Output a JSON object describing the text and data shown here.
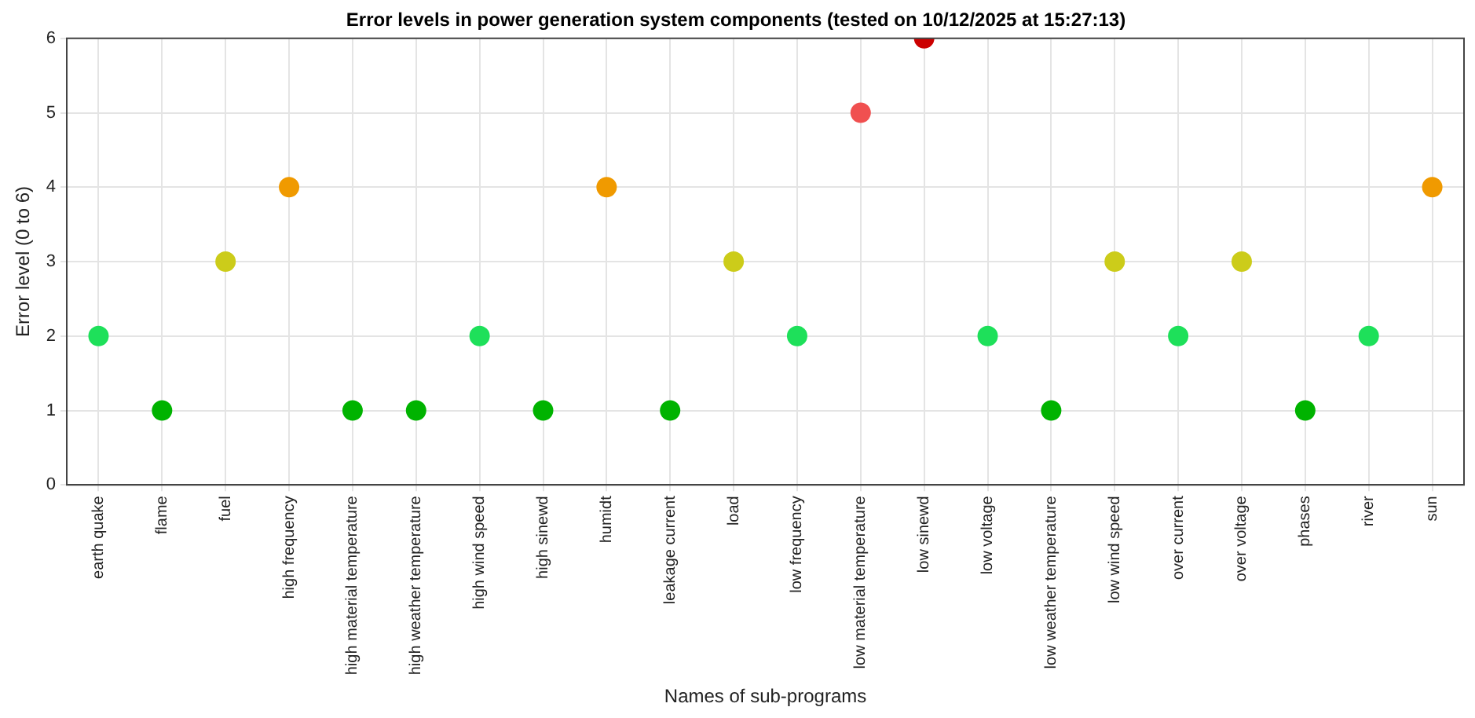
{
  "chart_data": {
    "type": "scatter",
    "title": "Error levels in power generation system components (tested on 10/12/2025 at 15:27:13)",
    "xlabel": "Names of sub-programs",
    "ylabel": "Error level (0 to 6)",
    "categories": [
      "earth quake",
      "flame",
      "fuel",
      "high frequency",
      "high material temperature",
      "high weather temperature",
      "high wind speed",
      "high sinewd",
      "humidt",
      "leakage current",
      "load",
      "low frequency",
      "low material temperature",
      "low sinewd",
      "low voltage",
      "low weather temperature",
      "low wind speed",
      "over current",
      "over voltage",
      "phases",
      "river",
      "sun"
    ],
    "values": [
      2,
      1,
      3,
      4,
      1,
      1,
      2,
      1,
      4,
      1,
      3,
      2,
      5,
      6,
      2,
      1,
      3,
      2,
      3,
      1,
      2,
      4
    ],
    "colors": [
      "#1ee05a",
      "#00b300",
      "#cccc1a",
      "#f09a00",
      "#00b300",
      "#00b300",
      "#1ee05a",
      "#00b300",
      "#f09a00",
      "#00b300",
      "#cccc1a",
      "#1ee05a",
      "#f05050",
      "#cc0000",
      "#1ee05a",
      "#00b300",
      "#cccc1a",
      "#1ee05a",
      "#cccc1a",
      "#00b300",
      "#1ee05a",
      "#f09a00"
    ],
    "ylim": [
      0,
      6
    ],
    "yticks": [
      0,
      1,
      2,
      3,
      4,
      5,
      6
    ],
    "grid": true,
    "marker": "circle"
  }
}
